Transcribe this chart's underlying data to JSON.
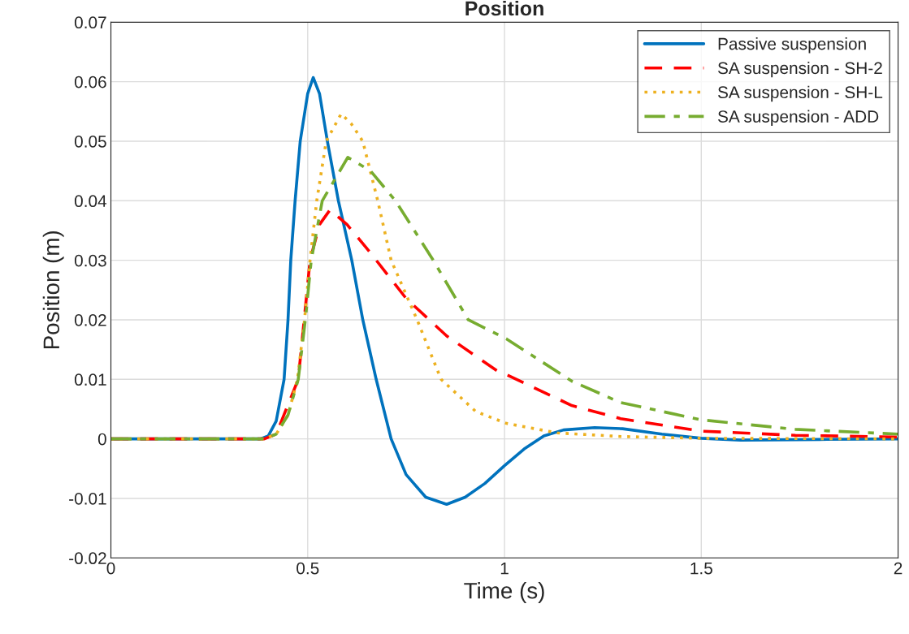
{
  "chart_data": {
    "type": "line",
    "title": "Position",
    "xlabel": "Time (s)",
    "ylabel": "Position (m)",
    "xlim": [
      0,
      2
    ],
    "ylim": [
      -0.02,
      0.07
    ],
    "xticks": [
      0,
      0.5,
      1,
      1.5,
      2
    ],
    "yticks": [
      -0.02,
      -0.01,
      0,
      0.01,
      0.02,
      0.03,
      0.04,
      0.05,
      0.06,
      0.07
    ],
    "grid": true,
    "legend": "top right",
    "series": [
      {
        "name": "Passive suspension",
        "color": "#0072bd",
        "line_style": "solid",
        "x": [
          0,
          0.38,
          0.4,
          0.42,
          0.44,
          0.45,
          0.457,
          0.468,
          0.481,
          0.5,
          0.514,
          0.53,
          0.55,
          0.578,
          0.612,
          0.64,
          0.674,
          0.712,
          0.75,
          0.8,
          0.853,
          0.9,
          0.95,
          1.0,
          1.05,
          1.1,
          1.15,
          1.229,
          1.3,
          1.4,
          1.5,
          1.6,
          1.8,
          2.0
        ],
        "values": [
          0,
          0,
          0.0005,
          0.003,
          0.01,
          0.02,
          0.03,
          0.04,
          0.05,
          0.058,
          0.0607,
          0.058,
          0.05,
          0.04,
          0.03,
          0.02,
          0.01,
          0,
          -0.006,
          -0.0098,
          -0.011,
          -0.0098,
          -0.0075,
          -0.0045,
          -0.0017,
          0.0005,
          0.0015,
          0.0019,
          0.0017,
          0.0008,
          0.0001,
          -0.0002,
          -0.0001,
          0
        ]
      },
      {
        "name": "SA suspension - SH-2",
        "color": "#ff0000",
        "line_style": "dashed",
        "x": [
          0,
          0.39,
          0.42,
          0.476,
          0.506,
          0.53,
          0.557,
          0.6,
          0.66,
          0.75,
          0.853,
          0.984,
          1.005,
          1.171,
          1.295,
          1.5,
          1.739,
          2.0
        ],
        "values": [
          0,
          0,
          0.0008,
          0.01,
          0.03,
          0.036,
          0.0385,
          0.036,
          0.0312,
          0.0236,
          0.0173,
          0.0113,
          0.0108,
          0.0056,
          0.0034,
          0.0013,
          0.0006,
          0.0003
        ]
      },
      {
        "name": "SA suspension - SH-L",
        "color": "#edb120",
        "line_style": "dotted",
        "x": [
          0,
          0.39,
          0.42,
          0.45,
          0.474,
          0.492,
          0.506,
          0.523,
          0.547,
          0.585,
          0.61,
          0.64,
          0.678,
          0.712,
          0.778,
          0.839,
          0.927,
          1.005,
          1.134,
          1.295,
          1.5,
          2.0
        ],
        "values": [
          0,
          0,
          0.0008,
          0.004,
          0.01,
          0.02,
          0.03,
          0.04,
          0.05,
          0.0546,
          0.053,
          0.05,
          0.04,
          0.03,
          0.02,
          0.01,
          0.0046,
          0.0026,
          0.001,
          0.0004,
          0.0001,
          0
        ]
      },
      {
        "name": "SA suspension - ADD",
        "color": "#77ac30",
        "line_style": "dashdot",
        "x": [
          0,
          0.39,
          0.42,
          0.45,
          0.476,
          0.494,
          0.509,
          0.537,
          0.602,
          0.66,
          0.723,
          0.819,
          0.908,
          1.005,
          1.171,
          1.295,
          1.5,
          1.739,
          2.0
        ],
        "values": [
          0,
          0,
          0.0008,
          0.004,
          0.01,
          0.02,
          0.03,
          0.04,
          0.0473,
          0.045,
          0.04,
          0.03,
          0.02,
          0.0168,
          0.0097,
          0.0061,
          0.0032,
          0.0016,
          0.0008
        ]
      }
    ]
  }
}
